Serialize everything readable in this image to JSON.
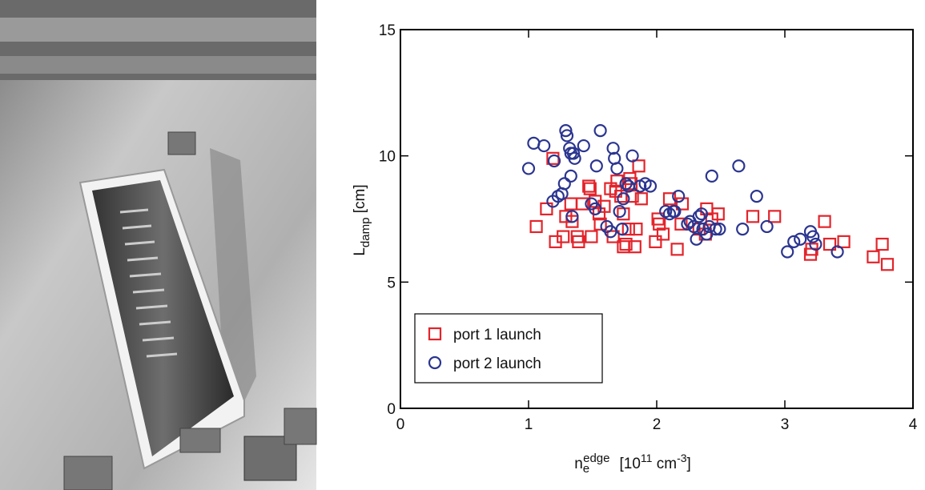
{
  "chart_data": {
    "type": "scatter",
    "x_label": {
      "main": "n",
      "sub": "e",
      "sup": "edge",
      "unit": [
        "[10",
        "11",
        " cm",
        "-3",
        "]"
      ]
    },
    "y_label": {
      "main": "L",
      "sub": "damp",
      "unit": " [cm]"
    },
    "xlim": [
      0,
      4
    ],
    "xticks": [
      0,
      1,
      2,
      3,
      4
    ],
    "ylim": [
      0,
      15
    ],
    "yticks": [
      0,
      5,
      10,
      15
    ],
    "legend": "lower left",
    "series": [
      {
        "name": "port 1 launch",
        "color": "#e3242b",
        "marker": "square",
        "x": [
          1.06,
          1.14,
          1.19,
          1.21,
          1.27,
          1.29,
          1.33,
          1.34,
          1.38,
          1.39,
          1.42,
          1.47,
          1.48,
          1.49,
          1.52,
          1.55,
          1.56,
          1.59,
          1.64,
          1.66,
          1.68,
          1.69,
          1.72,
          1.74,
          1.74,
          1.76,
          1.78,
          1.79,
          1.8,
          1.81,
          1.83,
          1.84,
          1.86,
          1.88,
          1.99,
          2.01,
          2.02,
          2.05,
          2.1,
          2.16,
          2.19,
          2.2,
          2.33,
          2.38,
          2.39,
          2.43,
          2.48,
          2.75,
          2.92,
          3.2,
          3.21,
          3.31,
          3.35,
          3.46,
          3.69,
          3.76,
          3.8
        ],
        "values": [
          7.2,
          7.9,
          9.9,
          6.6,
          6.8,
          7.6,
          8.1,
          7.4,
          6.8,
          6.6,
          8.1,
          8.8,
          8.7,
          6.8,
          8.2,
          7.7,
          7.3,
          8.0,
          8.7,
          6.8,
          8.6,
          9.0,
          8.4,
          7.7,
          6.4,
          6.5,
          7.1,
          9.1,
          8.9,
          8.4,
          6.4,
          7.1,
          9.6,
          8.3,
          6.6,
          7.5,
          7.3,
          6.9,
          8.3,
          6.3,
          7.3,
          8.1,
          7.1,
          6.9,
          7.9,
          7.5,
          7.7,
          7.6,
          7.6,
          6.1,
          6.3,
          7.4,
          6.5,
          6.6,
          6.0,
          6.5,
          5.7
        ]
      },
      {
        "name": "port 2 launch",
        "color": "#2b3590",
        "marker": "circle",
        "x": [
          1.0,
          1.04,
          1.12,
          1.2,
          1.19,
          1.23,
          1.26,
          1.28,
          1.29,
          1.3,
          1.32,
          1.33,
          1.35,
          1.36,
          1.34,
          1.33,
          1.43,
          1.49,
          1.52,
          1.53,
          1.56,
          1.61,
          1.64,
          1.66,
          1.67,
          1.69,
          1.71,
          1.73,
          1.74,
          1.76,
          1.78,
          1.81,
          1.87,
          1.91,
          1.95,
          2.07,
          2.1,
          2.13,
          2.14,
          2.17,
          2.24,
          2.26,
          2.29,
          2.31,
          2.33,
          2.35,
          2.36,
          2.39,
          2.41,
          2.43,
          2.46,
          2.49,
          2.64,
          2.67,
          2.78,
          2.86,
          3.02,
          3.07,
          3.12,
          3.2,
          3.22,
          3.24,
          3.41
        ],
        "values": [
          9.5,
          10.5,
          10.4,
          9.8,
          8.2,
          8.4,
          8.5,
          8.9,
          11.0,
          10.8,
          10.3,
          10.1,
          10.1,
          9.9,
          7.6,
          9.2,
          10.4,
          8.1,
          7.9,
          9.6,
          11.0,
          7.2,
          7.0,
          10.3,
          9.9,
          9.5,
          7.8,
          7.1,
          8.3,
          8.9,
          8.8,
          10.0,
          8.8,
          8.9,
          8.8,
          7.8,
          7.7,
          7.8,
          7.8,
          8.4,
          7.3,
          7.4,
          7.2,
          6.7,
          7.6,
          7.7,
          7.1,
          6.9,
          7.2,
          9.2,
          7.1,
          7.1,
          9.6,
          7.1,
          8.4,
          7.2,
          6.2,
          6.6,
          6.7,
          7.0,
          6.8,
          6.5,
          6.2
        ]
      }
    ]
  }
}
